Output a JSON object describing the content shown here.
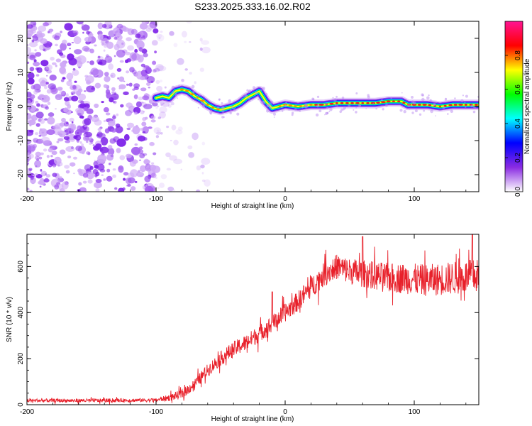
{
  "title": "S233.2025.333.16.02.R02",
  "chart_data": [
    {
      "type": "heatmap",
      "id": "spectrogram",
      "xlabel": "Height of straight line (km)",
      "ylabel": "Frequency (Hz)",
      "xlim": [
        -200,
        150
      ],
      "ylim": [
        -25,
        25
      ],
      "xticks": [
        -200,
        -100,
        0,
        100
      ],
      "yticks": [
        -20,
        -10,
        0,
        10,
        20
      ],
      "colorbar": {
        "label": "Normalized spectral amplitude",
        "range": [
          0,
          1
        ],
        "ticks": [
          0.0,
          0.2,
          0.4,
          0.6,
          0.8
        ],
        "tick_labels": [
          "0.0",
          "0.2",
          "0.4",
          "0.6",
          "0.8"
        ],
        "colors": [
          "#ffffff",
          "#8a2be2",
          "#0000ff",
          "#00ffff",
          "#00ff00",
          "#ffff00",
          "#ff0000",
          "#ff1493"
        ]
      },
      "noise_region": {
        "x_from": -200,
        "x_to": -80
      },
      "ridge": [
        {
          "x": -100,
          "y": 2.5
        },
        {
          "x": -95,
          "y": 3.0
        },
        {
          "x": -90,
          "y": 2.5
        },
        {
          "x": -85,
          "y": 4.5
        },
        {
          "x": -80,
          "y": 5.0
        },
        {
          "x": -75,
          "y": 4.5
        },
        {
          "x": -70,
          "y": 3.0
        },
        {
          "x": -65,
          "y": 2.0
        },
        {
          "x": -60,
          "y": 0.5
        },
        {
          "x": -55,
          "y": -0.5
        },
        {
          "x": -50,
          "y": -1.0
        },
        {
          "x": -45,
          "y": -0.5
        },
        {
          "x": -40,
          "y": 0.0
        },
        {
          "x": -35,
          "y": 1.0
        },
        {
          "x": -30,
          "y": 2.5
        },
        {
          "x": -25,
          "y": 3.5
        },
        {
          "x": -20,
          "y": 4.5
        },
        {
          "x": -15,
          "y": 1.5
        },
        {
          "x": -10,
          "y": -0.5
        },
        {
          "x": -5,
          "y": 0.0
        },
        {
          "x": 0,
          "y": 0.5
        },
        {
          "x": 10,
          "y": 0.0
        },
        {
          "x": 20,
          "y": 0.5
        },
        {
          "x": 30,
          "y": 0.5
        },
        {
          "x": 40,
          "y": 1.0
        },
        {
          "x": 50,
          "y": 1.0
        },
        {
          "x": 60,
          "y": 1.0
        },
        {
          "x": 70,
          "y": 1.0
        },
        {
          "x": 80,
          "y": 1.5
        },
        {
          "x": 90,
          "y": 1.5
        },
        {
          "x": 95,
          "y": 0.5
        },
        {
          "x": 100,
          "y": 0.5
        },
        {
          "x": 110,
          "y": 0.5
        },
        {
          "x": 120,
          "y": 0.0
        },
        {
          "x": 130,
          "y": 0.5
        },
        {
          "x": 140,
          "y": 0.5
        },
        {
          "x": 150,
          "y": 0.5
        }
      ]
    },
    {
      "type": "line",
      "id": "snr",
      "xlabel": "Height of straight line (km)",
      "ylabel": "SNR (10 * v/v)",
      "xlim": [
        -200,
        150
      ],
      "ylim": [
        0,
        740
      ],
      "xticks": [
        -200,
        -100,
        0,
        100
      ],
      "yticks": [
        0,
        200,
        400,
        600
      ],
      "color": "#e8202a",
      "trend": [
        {
          "x": -200,
          "y": 18
        },
        {
          "x": -150,
          "y": 18
        },
        {
          "x": -100,
          "y": 20
        },
        {
          "x": -90,
          "y": 30
        },
        {
          "x": -80,
          "y": 45
        },
        {
          "x": -70,
          "y": 90
        },
        {
          "x": -60,
          "y": 150
        },
        {
          "x": -50,
          "y": 200
        },
        {
          "x": -40,
          "y": 240
        },
        {
          "x": -30,
          "y": 270
        },
        {
          "x": -20,
          "y": 310
        },
        {
          "x": -10,
          "y": 350
        },
        {
          "x": 0,
          "y": 400
        },
        {
          "x": 10,
          "y": 450
        },
        {
          "x": 20,
          "y": 510
        },
        {
          "x": 30,
          "y": 565
        },
        {
          "x": 40,
          "y": 600
        },
        {
          "x": 50,
          "y": 580
        },
        {
          "x": 60,
          "y": 570
        },
        {
          "x": 70,
          "y": 560
        },
        {
          "x": 80,
          "y": 550
        },
        {
          "x": 90,
          "y": 550
        },
        {
          "x": 100,
          "y": 545
        },
        {
          "x": 110,
          "y": 540
        },
        {
          "x": 120,
          "y": 545
        },
        {
          "x": 130,
          "y": 550
        },
        {
          "x": 140,
          "y": 555
        },
        {
          "x": 150,
          "y": 560
        }
      ],
      "noise_amplitude": [
        {
          "x": -200,
          "y": 8
        },
        {
          "x": -100,
          "y": 8
        },
        {
          "x": -80,
          "y": 20
        },
        {
          "x": -40,
          "y": 35
        },
        {
          "x": 0,
          "y": 40
        },
        {
          "x": 40,
          "y": 55
        },
        {
          "x": 80,
          "y": 65
        },
        {
          "x": 150,
          "y": 75
        }
      ],
      "peaks": [
        {
          "x": -10,
          "y": 490
        },
        {
          "x": 60,
          "y": 730
        },
        {
          "x": 145,
          "y": 740
        }
      ]
    }
  ]
}
